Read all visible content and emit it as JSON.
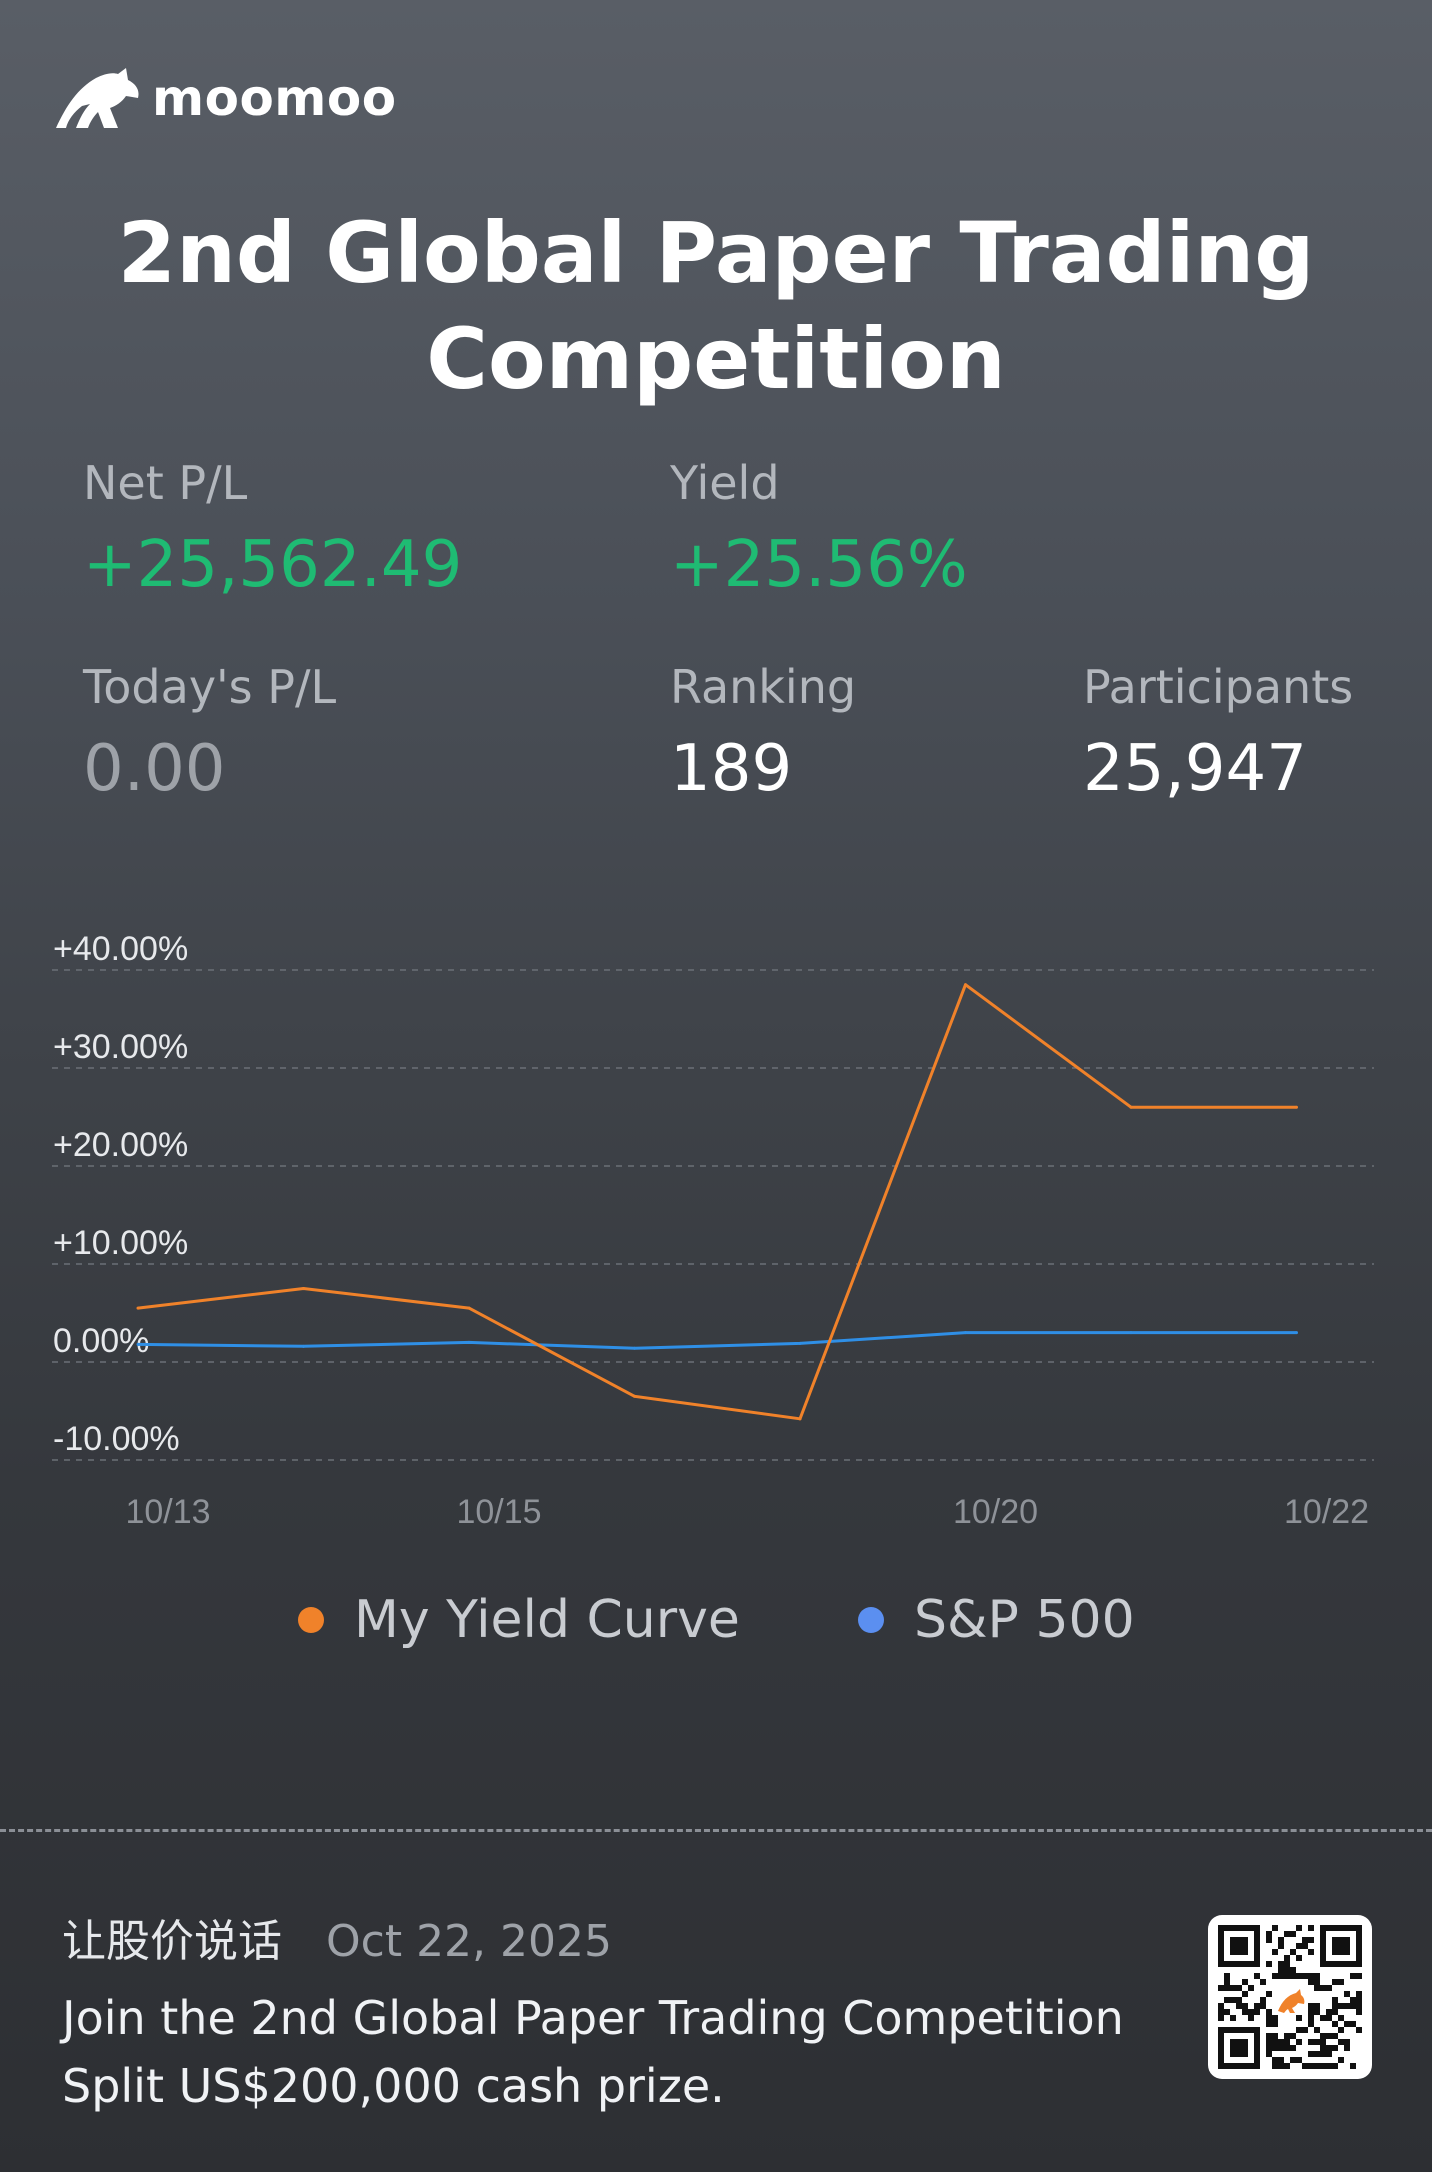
{
  "brand": {
    "name": "moomoo"
  },
  "title": "2nd Global Paper Trading Competition",
  "stats": {
    "net_pl": {
      "label": "Net P/L",
      "value": "+25,562.49"
    },
    "yield": {
      "label": "Yield",
      "value": "+25.56%"
    },
    "today_pl": {
      "label": "Today's P/L",
      "value": "0.00"
    },
    "ranking": {
      "label": "Ranking",
      "value": "189"
    },
    "participants": {
      "label": "Participants",
      "value": "25,947"
    }
  },
  "colors": {
    "gain": "#1fbb73",
    "my_yield": "#f0822a",
    "sp500": "#2f8fe6",
    "legend_sp500": "#5b8ff0"
  },
  "chart_data": {
    "type": "line",
    "x": [
      "10/13",
      "10/14",
      "10/15",
      "10/16",
      "10/17",
      "10/20",
      "10/21",
      "10/22"
    ],
    "x_tick_labels": [
      "10/13",
      "10/15",
      "10/20",
      "10/22"
    ],
    "y_tick_labels": [
      "+40.00%",
      "+30.00%",
      "+20.00%",
      "+10.00%",
      "0.00%",
      "-10.00%"
    ],
    "ylim": [
      -10,
      40
    ],
    "y_unit": "%",
    "grid": true,
    "legend_position": "bottom",
    "series": [
      {
        "name": "My Yield Curve",
        "color": "#f0822a",
        "values": [
          5.5,
          7.5,
          5.5,
          -3.5,
          -5.8,
          38.5,
          26.0,
          26.0
        ]
      },
      {
        "name": "S&P 500",
        "color": "#2f8fe6",
        "values": [
          1.8,
          1.6,
          2.0,
          1.4,
          1.9,
          3.0,
          3.0,
          3.0
        ]
      }
    ]
  },
  "footer": {
    "cn_text": "让股价说话",
    "date": "Oct 22, 2025",
    "line1": "Join the 2nd Global Paper Trading Competition",
    "line2": "Split US$200,000 cash prize."
  },
  "qr": {
    "icon": "qr-code-icon"
  }
}
